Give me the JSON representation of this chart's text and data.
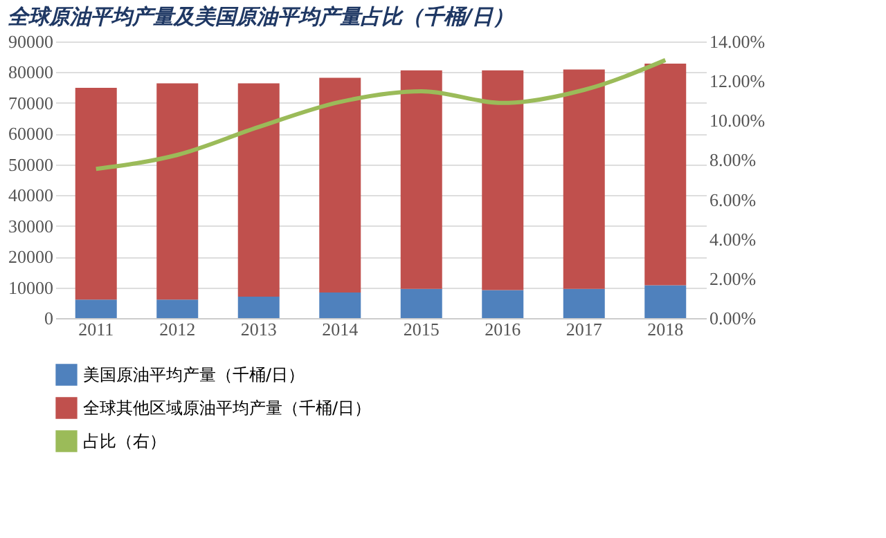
{
  "chart_data": {
    "type": "bar",
    "title": "全球原油平均产量及美国原油平均产量占比（千桶/日）",
    "stacked": true,
    "categories": [
      "2011",
      "2012",
      "2013",
      "2014",
      "2015",
      "2016",
      "2017",
      "2018"
    ],
    "series": [
      {
        "name": "美国原油平均产量（千桶/日）",
        "color": "#4f81bd",
        "values": [
          6000,
          6000,
          7000,
          8300,
          9500,
          9100,
          9500,
          10700
        ]
      },
      {
        "name": "全球其他区域原油平均产量（千桶/日）",
        "color": "#c0504d",
        "values": [
          68900,
          70400,
          69400,
          69900,
          71100,
          71500,
          71400,
          72100
        ]
      },
      {
        "name": "占比（右）",
        "color": "#9bbb59",
        "type": "line",
        "axis": "y2",
        "values": [
          7.55,
          8.26,
          9.67,
          10.94,
          11.48,
          10.89,
          11.55,
          13.06
        ]
      }
    ],
    "ylim": [
      0,
      90000
    ],
    "yticks": [
      0,
      10000,
      20000,
      30000,
      40000,
      50000,
      60000,
      70000,
      80000,
      90000
    ],
    "y2lim": [
      0,
      14
    ],
    "y2ticks": [
      {
        "value": 0,
        "label": "0.00%"
      },
      {
        "value": 2,
        "label": "2.00%"
      },
      {
        "value": 4,
        "label": "4.00%"
      },
      {
        "value": 6,
        "label": "6.00%"
      },
      {
        "value": 8,
        "label": "8.00%"
      },
      {
        "value": 10,
        "label": "10.00%"
      },
      {
        "value": 12,
        "label": "12.00%"
      },
      {
        "value": 14,
        "label": "14.00%"
      }
    ],
    "grid": "y",
    "legend": "bottom"
  }
}
